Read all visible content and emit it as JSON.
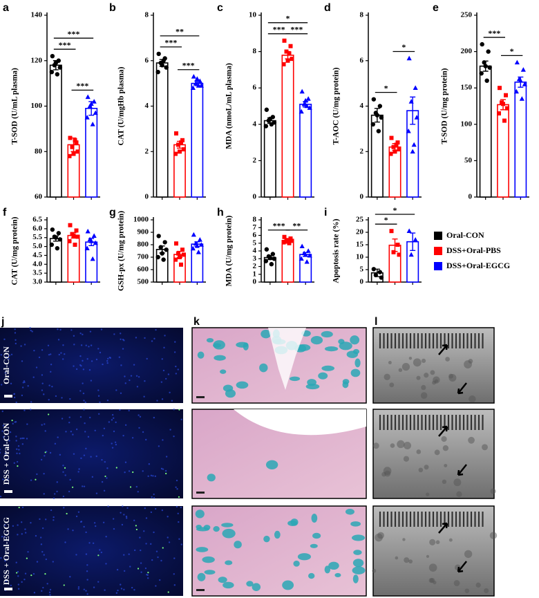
{
  "chart_data": [
    {
      "type": "bar",
      "label": "a",
      "ylabel": "T-SOD (U/mL plasma)",
      "ylim": [
        60,
        140
      ],
      "yticks": [
        60,
        80,
        100,
        120,
        140
      ],
      "series": [
        {
          "name": "Oral-CON",
          "color": "#000000",
          "marker": "circle",
          "values": [
            118
          ],
          "errors": [
            2
          ],
          "points": [
            122,
            120,
            118,
            117,
            115,
            114,
            119
          ]
        },
        {
          "name": "DSS+Oral-PBS",
          "color": "#ff0000",
          "marker": "square",
          "values": [
            83
          ],
          "errors": [
            3
          ],
          "points": [
            86,
            84,
            82,
            80,
            78,
            85,
            79
          ]
        },
        {
          "name": "DSS+Oral-EGCG",
          "color": "#0000ff",
          "marker": "triangle",
          "values": [
            99
          ],
          "errors": [
            3
          ],
          "points": [
            104,
            102,
            100,
            97,
            95,
            92,
            101
          ]
        }
      ],
      "annotations": [
        {
          "text": "***",
          "groups": [
            0,
            1
          ]
        },
        {
          "text": "***",
          "groups": [
            0,
            2
          ]
        },
        {
          "text": "***",
          "groups": [
            1,
            2
          ]
        }
      ]
    },
    {
      "type": "bar",
      "label": "b",
      "ylabel": "CAT (U/mgHb plasma)",
      "ylim": [
        0,
        8
      ],
      "yticks": [
        0,
        2,
        4,
        6,
        8
      ],
      "series": [
        {
          "name": "Oral-CON",
          "color": "#000000",
          "marker": "circle",
          "values": [
            5.9
          ],
          "errors": [
            0.15
          ],
          "points": [
            6.3,
            6.1,
            5.9,
            5.7,
            5.5,
            6.0,
            5.8
          ]
        },
        {
          "name": "DSS+Oral-PBS",
          "color": "#ff0000",
          "marker": "square",
          "values": [
            2.3
          ],
          "errors": [
            0.15
          ],
          "points": [
            2.8,
            2.5,
            2.3,
            2.1,
            1.9,
            2.4,
            2.0
          ]
        },
        {
          "name": "DSS+Oral-EGCG",
          "color": "#0000ff",
          "marker": "triangle",
          "values": [
            5.0
          ],
          "errors": [
            0.1
          ],
          "points": [
            5.3,
            5.1,
            5.0,
            4.9,
            4.8,
            4.9,
            5.2
          ]
        }
      ],
      "annotations": [
        {
          "text": "***",
          "groups": [
            0,
            1
          ]
        },
        {
          "text": "**",
          "groups": [
            0,
            2
          ]
        },
        {
          "text": "***",
          "groups": [
            1,
            2
          ]
        }
      ]
    },
    {
      "type": "bar",
      "label": "c",
      "ylabel": "MDA (nmoL/mL plasma)",
      "ylim": [
        0,
        10
      ],
      "yticks": [
        0,
        2,
        4,
        6,
        8,
        10
      ],
      "series": [
        {
          "name": "Oral-CON",
          "color": "#000000",
          "marker": "circle",
          "values": [
            4.2
          ],
          "errors": [
            0.15
          ],
          "points": [
            4.8,
            4.4,
            4.2,
            4.1,
            3.9,
            4.0,
            4.3
          ]
        },
        {
          "name": "DSS+Oral-PBS",
          "color": "#ff0000",
          "marker": "square",
          "values": [
            7.8
          ],
          "errors": [
            0.2
          ],
          "points": [
            8.6,
            8.3,
            8.0,
            7.6,
            7.3,
            7.9,
            7.5
          ]
        },
        {
          "name": "DSS+Oral-EGCG",
          "color": "#0000ff",
          "marker": "triangle",
          "values": [
            5.1
          ],
          "errors": [
            0.15
          ],
          "points": [
            5.8,
            5.4,
            5.1,
            4.9,
            4.7,
            5.0,
            5.3
          ]
        }
      ],
      "annotations": [
        {
          "text": "***",
          "groups": [
            0,
            1
          ]
        },
        {
          "text": "*",
          "groups": [
            0,
            2
          ]
        },
        {
          "text": "***",
          "groups": [
            1,
            2
          ]
        }
      ]
    },
    {
      "type": "bar",
      "label": "d",
      "ylabel": "T-AOC (U/mg protein)",
      "ylim": [
        0,
        8
      ],
      "yticks": [
        0,
        2,
        4,
        6,
        8
      ],
      "series": [
        {
          "name": "Oral-CON",
          "color": "#000000",
          "marker": "circle",
          "values": [
            3.6
          ],
          "errors": [
            0.3
          ],
          "points": [
            4.3,
            4.0,
            3.7,
            3.5,
            3.2,
            2.9,
            3.6
          ]
        },
        {
          "name": "DSS+Oral-PBS",
          "color": "#ff0000",
          "marker": "square",
          "values": [
            2.2
          ],
          "errors": [
            0.15
          ],
          "points": [
            2.6,
            2.4,
            2.2,
            2.1,
            1.9,
            2.3,
            2.0
          ]
        },
        {
          "name": "DSS+Oral-EGCG",
          "color": "#0000ff",
          "marker": "triangle",
          "values": [
            3.8
          ],
          "errors": [
            0.6
          ],
          "points": [
            6.1,
            4.8,
            4.2,
            3.5,
            2.9,
            2.3,
            2.0
          ]
        }
      ],
      "annotations": [
        {
          "text": "*",
          "groups": [
            0,
            1
          ]
        },
        {
          "text": "*",
          "groups": [
            1,
            2
          ]
        }
      ]
    },
    {
      "type": "bar",
      "label": "e",
      "ylabel": "T-SOD (U/mg protein)",
      "ylim": [
        0,
        250
      ],
      "yticks": [
        0,
        50,
        100,
        150,
        200,
        250
      ],
      "series": [
        {
          "name": "Oral-CON",
          "color": "#000000",
          "marker": "circle",
          "values": [
            180
          ],
          "errors": [
            7
          ],
          "points": [
            210,
            200,
            185,
            178,
            170,
            160,
            180
          ]
        },
        {
          "name": "DSS+Oral-PBS",
          "color": "#ff0000",
          "marker": "square",
          "values": [
            127
          ],
          "errors": [
            7
          ],
          "points": [
            150,
            140,
            130,
            122,
            115,
            105,
            128
          ]
        },
        {
          "name": "DSS+Oral-EGCG",
          "color": "#0000ff",
          "marker": "triangle",
          "values": [
            158
          ],
          "errors": [
            7
          ],
          "points": [
            185,
            175,
            162,
            155,
            145,
            135,
            160
          ]
        }
      ],
      "annotations": [
        {
          "text": "***",
          "groups": [
            0,
            1
          ]
        },
        {
          "text": "*",
          "groups": [
            1,
            2
          ]
        }
      ]
    },
    {
      "type": "bar",
      "label": "f",
      "ylabel": "CAT (U/mg protein)",
      "ylim": [
        3.0,
        6.5
      ],
      "yticks": [
        {
          "value": 3.0,
          "label": "3.0"
        },
        3.5,
        {
          "value": 4.0,
          "label": "4.0"
        },
        4.5,
        {
          "value": 5.0,
          "label": "5.0"
        },
        5.5,
        {
          "value": 6.0,
          "label": "6.0"
        },
        6.5
      ],
      "series": [
        {
          "name": "Oral-CON",
          "color": "#000000",
          "marker": "circle",
          "values": [
            5.45
          ],
          "errors": [
            0.15
          ],
          "points": [
            5.95,
            5.75,
            5.55,
            5.4,
            5.1,
            4.9,
            5.5
          ]
        },
        {
          "name": "DSS+Oral-PBS",
          "color": "#ff0000",
          "marker": "square",
          "values": [
            5.62
          ],
          "errors": [
            0.15
          ],
          "points": [
            6.2,
            5.9,
            5.7,
            5.55,
            5.3,
            5.1,
            5.6
          ]
        },
        {
          "name": "DSS+Oral-EGCG",
          "color": "#0000ff",
          "marker": "triangle",
          "values": [
            5.25
          ],
          "errors": [
            0.2
          ],
          "points": [
            5.85,
            5.6,
            5.4,
            5.2,
            4.9,
            4.3,
            5.3
          ]
        }
      ],
      "annotations": []
    },
    {
      "type": "bar",
      "label": "g",
      "ylabel": "GSH-px (U/mg protein)",
      "ylim": [
        500,
        1000
      ],
      "yticks": [
        500,
        600,
        700,
        800,
        900,
        1000
      ],
      "series": [
        {
          "name": "Oral-CON",
          "color": "#000000",
          "marker": "circle",
          "values": [
            762
          ],
          "errors": [
            28
          ],
          "points": [
            870,
            820,
            780,
            760,
            700,
            680,
            730
          ]
        },
        {
          "name": "DSS+Oral-PBS",
          "color": "#ff0000",
          "marker": "square",
          "values": [
            722
          ],
          "errors": [
            25
          ],
          "points": [
            810,
            760,
            730,
            720,
            680,
            640,
            700
          ]
        },
        {
          "name": "DSS+Oral-EGCG",
          "color": "#0000ff",
          "marker": "triangle",
          "values": [
            805
          ],
          "errors": [
            18
          ],
          "points": [
            880,
            840,
            810,
            800,
            770,
            740,
            790
          ]
        }
      ],
      "annotations": []
    },
    {
      "type": "bar",
      "label": "h",
      "ylabel": "MDA (U/mg protein)",
      "ylim": [
        0,
        8
      ],
      "yticks": [
        0,
        1,
        2,
        3,
        4,
        5,
        6,
        7,
        8
      ],
      "series": [
        {
          "name": "Oral-CON",
          "color": "#000000",
          "marker": "circle",
          "values": [
            3.15
          ],
          "errors": [
            0.25
          ],
          "points": [
            4.2,
            3.6,
            3.3,
            3.0,
            2.7,
            2.3,
            3.1
          ]
        },
        {
          "name": "DSS+Oral-PBS",
          "color": "#ff0000",
          "marker": "square",
          "values": [
            5.35
          ],
          "errors": [
            0.12
          ],
          "points": [
            5.8,
            5.6,
            5.4,
            5.3,
            5.1,
            5.0,
            5.2
          ]
        },
        {
          "name": "DSS+Oral-EGCG",
          "color": "#0000ff",
          "marker": "triangle",
          "values": [
            3.55
          ],
          "errors": [
            0.25
          ],
          "points": [
            4.6,
            4.0,
            3.7,
            3.4,
            3.0,
            2.6,
            3.5
          ]
        }
      ],
      "annotations": [
        {
          "text": "***",
          "groups": [
            0,
            1
          ]
        },
        {
          "text": "**",
          "groups": [
            1,
            2
          ]
        }
      ]
    },
    {
      "type": "bar",
      "label": "i",
      "ylabel": "Apoptosis rate (%)",
      "ylim": [
        0,
        25
      ],
      "yticks": [
        0,
        5,
        10,
        15,
        20,
        25
      ],
      "series": [
        {
          "name": "Oral-CON",
          "color": "#000000",
          "marker": "circle",
          "values": [
            3.7
          ],
          "errors": [
            1.5
          ],
          "points": [
            5.2,
            4.0,
            2.8,
            1.8
          ]
        },
        {
          "name": "DSS+Oral-PBS",
          "color": "#ff0000",
          "marker": "square",
          "values": [
            14.8
          ],
          "errors": [
            2.5
          ],
          "points": [
            20.5,
            15,
            12,
            11
          ]
        },
        {
          "name": "DSS+Oral-EGCG",
          "color": "#0000ff",
          "marker": "triangle",
          "values": [
            16.2
          ],
          "errors": [
            3.5
          ],
          "points": [
            20.5,
            17,
            11
          ]
        }
      ],
      "annotations": [
        {
          "text": "*",
          "groups": [
            0,
            1
          ]
        },
        {
          "text": "*",
          "groups": [
            0,
            2
          ]
        }
      ]
    }
  ],
  "images": {
    "panels": [
      "j",
      "k",
      "l"
    ],
    "rows": [
      "Oral-CON",
      "DSS + Oral-CON",
      "DSS + Oral-EGCG"
    ]
  }
}
